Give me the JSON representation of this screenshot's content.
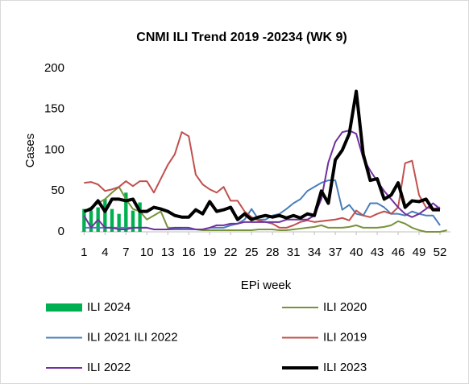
{
  "chart_data": {
    "type": "line",
    "title": "CNMI ILI Trend 2019 -20234 (WK 9)",
    "x_label": "EPi week",
    "y_label": "Cases",
    "x": [
      1,
      2,
      3,
      4,
      5,
      6,
      7,
      8,
      9,
      10,
      11,
      12,
      13,
      14,
      15,
      16,
      17,
      18,
      19,
      20,
      21,
      22,
      23,
      24,
      25,
      26,
      27,
      28,
      29,
      30,
      31,
      32,
      33,
      34,
      35,
      36,
      37,
      38,
      39,
      40,
      41,
      42,
      43,
      44,
      45,
      46,
      47,
      48,
      49,
      50,
      51,
      52,
      53
    ],
    "xlim": [
      0.5,
      53.5
    ],
    "xticks": [
      1,
      4,
      7,
      10,
      13,
      16,
      19,
      22,
      25,
      28,
      31,
      34,
      37,
      40,
      43,
      46,
      49,
      52
    ],
    "ylim": [
      0,
      200
    ],
    "yticks": [
      0,
      50,
      100,
      150,
      200
    ],
    "series": [
      {
        "name": "ILI 2024",
        "type": "bar",
        "color": "#00b050",
        "values": [
          28,
          26,
          30,
          40,
          28,
          22,
          48,
          26,
          36,
          null,
          null,
          null,
          null,
          null,
          null,
          null,
          null,
          null,
          null,
          null,
          null,
          null,
          null,
          null,
          null,
          null,
          null,
          null,
          null,
          null,
          null,
          null,
          null,
          null,
          null,
          null,
          null,
          null,
          null,
          null,
          null,
          null,
          null,
          null,
          null,
          null,
          null,
          null,
          null,
          null,
          null,
          null,
          null
        ]
      },
      {
        "name": "ILI 2020",
        "color": "#77933c",
        "line_width": 2,
        "values": [
          25,
          30,
          35,
          40,
          48,
          55,
          40,
          28,
          25,
          15,
          20,
          25,
          5,
          5,
          3,
          3,
          3,
          2,
          2,
          2,
          2,
          2,
          2,
          2,
          2,
          3,
          3,
          3,
          2,
          2,
          3,
          4,
          5,
          6,
          8,
          5,
          5,
          5,
          6,
          8,
          5,
          5,
          5,
          6,
          8,
          13,
          10,
          5,
          2,
          0,
          0,
          0,
          2
        ]
      },
      {
        "name": "ILI 2021 ILI 2022",
        "color": "#4a7ebb",
        "line_width": 2,
        "values": [
          5,
          5,
          5,
          5,
          5,
          5,
          5,
          5,
          5,
          5,
          3,
          3,
          3,
          3,
          3,
          3,
          3,
          3,
          5,
          5,
          5,
          8,
          10,
          15,
          28,
          15,
          15,
          20,
          22,
          28,
          35,
          40,
          50,
          55,
          60,
          63,
          63,
          27,
          33,
          22,
          20,
          35,
          35,
          30,
          22,
          22,
          20,
          25,
          22,
          20,
          20,
          8,
          null
        ]
      },
      {
        "name": "ILI 2019",
        "color": "#c0504d",
        "line_width": 2,
        "values": [
          60,
          61,
          58,
          50,
          52,
          55,
          62,
          56,
          62,
          62,
          48,
          65,
          82,
          95,
          122,
          117,
          70,
          58,
          52,
          48,
          55,
          38,
          38,
          25,
          18,
          14,
          12,
          10,
          5,
          5,
          8,
          12,
          14,
          12,
          13,
          14,
          15,
          17,
          14,
          26,
          20,
          18,
          22,
          25,
          22,
          30,
          84,
          87,
          45,
          30,
          28,
          30,
          null
        ]
      },
      {
        "name": "ILI 2022",
        "color": "#7030a0",
        "line_width": 2,
        "values": [
          20,
          5,
          15,
          5,
          5,
          3,
          3,
          5,
          5,
          5,
          3,
          3,
          3,
          5,
          5,
          5,
          3,
          3,
          5,
          8,
          8,
          10,
          10,
          12,
          12,
          12,
          12,
          12,
          12,
          15,
          15,
          15,
          15,
          20,
          40,
          85,
          110,
          122,
          124,
          120,
          90,
          75,
          62,
          50,
          40,
          30,
          22,
          18,
          22,
          28,
          35,
          28,
          null
        ]
      },
      {
        "name": "ILI 2023",
        "color": "#000000",
        "line_width": 4,
        "values": [
          25,
          28,
          38,
          25,
          40,
          40,
          38,
          40,
          25,
          25,
          30,
          28,
          25,
          20,
          18,
          18,
          27,
          22,
          37,
          25,
          27,
          30,
          15,
          22,
          15,
          18,
          20,
          18,
          20,
          17,
          20,
          17,
          22,
          20,
          50,
          35,
          88,
          100,
          120,
          172,
          95,
          63,
          65,
          40,
          45,
          60,
          30,
          38,
          37,
          40,
          27,
          27,
          null
        ]
      }
    ]
  }
}
